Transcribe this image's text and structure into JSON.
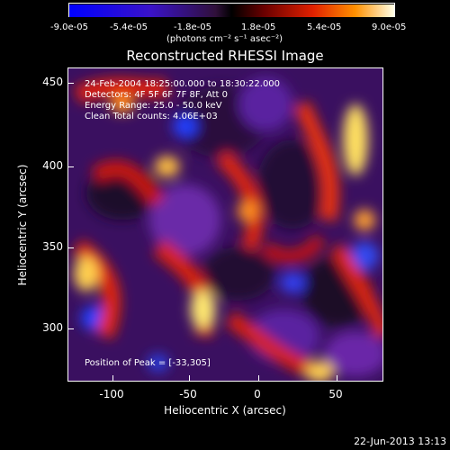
{
  "colorbar": {
    "ticks": [
      "-9.0e-05",
      "-5.4e-05",
      "-1.8e-05",
      "1.8e-05",
      "5.4e-05",
      "9.0e-05"
    ],
    "units": "(photons cm⁻² s⁻¹ asec⁻²)"
  },
  "title": "Reconstructed RHESSI Image",
  "annotation": {
    "time": "24-Feb-2004 18:25:00.000 to 18:30:22.000",
    "detectors": "Detectors: 4F 5F 6F 7F 8F, Att 0",
    "energy": "Energy Range: 25.0 - 50.0 keV",
    "method": "Clean     Total counts: 4.06E+03",
    "peak": "Position of Peak = [-33,305]"
  },
  "axes": {
    "xlabel": "Heliocentric X (arcsec)",
    "ylabel": "Heliocentric Y (arcsec)",
    "xticks": [
      "-100",
      "-50",
      "0",
      "50"
    ],
    "yticks": [
      "450",
      "400",
      "350",
      "300"
    ]
  },
  "footer": {
    "date": "22-Jun-2013 13:13"
  }
}
